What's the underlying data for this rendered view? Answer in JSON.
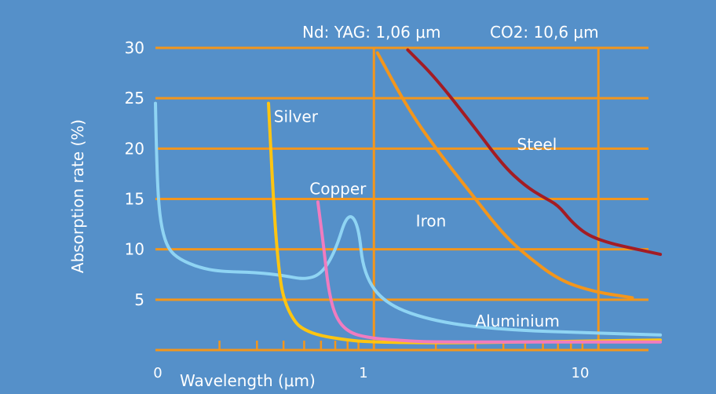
{
  "chart_data": {
    "type": "line",
    "title": "",
    "xlabel": "Wavelength (μm)",
    "ylabel": "Absorption rate (%)",
    "xscale": "log",
    "xlim": [
      0.1,
      20
    ],
    "ylim": [
      0,
      30
    ],
    "grid": true,
    "x_tick_labels": [
      {
        "x": 0.1,
        "label": "0"
      },
      {
        "x": 1,
        "label": "1"
      },
      {
        "x": 10,
        "label": "10"
      }
    ],
    "y_ticks": [
      5,
      10,
      15,
      20,
      25,
      30
    ],
    "minor_x_ticks": [
      0.2,
      0.3,
      0.4,
      0.5,
      0.6,
      0.7,
      0.8,
      0.9,
      2,
      3,
      4,
      5,
      6,
      7,
      8,
      9
    ],
    "reference_lines": [
      {
        "x": 1.06,
        "label": "Nd: YAG: 1,06 μm"
      },
      {
        "x": 10.6,
        "label": "CO2: 10,6 μm"
      }
    ],
    "series": [
      {
        "name": "Aluminium",
        "color": "#8fd4f3",
        "points": [
          [
            0.1,
            24.5
          ],
          [
            0.101,
            20.0
          ],
          [
            0.103,
            15.0
          ],
          [
            0.107,
            12.0
          ],
          [
            0.115,
            10.0
          ],
          [
            0.13,
            9.0
          ],
          [
            0.16,
            8.2
          ],
          [
            0.2,
            7.8
          ],
          [
            0.3,
            7.7
          ],
          [
            0.4,
            7.4
          ],
          [
            0.5,
            7.0
          ],
          [
            0.6,
            7.5
          ],
          [
            0.7,
            9.8
          ],
          [
            0.8,
            13.7
          ],
          [
            0.9,
            12.5
          ],
          [
            0.95,
            7.5
          ],
          [
            1.2,
            4.5
          ],
          [
            2,
            2.8
          ],
          [
            4,
            2.0
          ],
          [
            10,
            1.7
          ],
          [
            20,
            1.5
          ]
        ]
      },
      {
        "name": "Silver",
        "color": "#ffc511",
        "points": [
          [
            0.34,
            24.5
          ],
          [
            0.36,
            14.0
          ],
          [
            0.38,
            8.0
          ],
          [
            0.4,
            5.0
          ],
          [
            0.45,
            2.8
          ],
          [
            0.5,
            2.0
          ],
          [
            0.6,
            1.4
          ],
          [
            0.8,
            1.0
          ],
          [
            1,
            0.8
          ],
          [
            2,
            0.7
          ],
          [
            5,
            0.8
          ],
          [
            10,
            0.9
          ],
          [
            20,
            1.0
          ]
        ]
      },
      {
        "name": "Copper",
        "color": "#f07cbf",
        "points": [
          [
            0.58,
            14.7
          ],
          [
            0.62,
            10.0
          ],
          [
            0.65,
            6.0
          ],
          [
            0.7,
            3.3
          ],
          [
            0.8,
            1.8
          ],
          [
            1,
            1.2
          ],
          [
            1.5,
            0.9
          ],
          [
            2,
            0.8
          ],
          [
            5,
            0.8
          ],
          [
            10,
            0.8
          ],
          [
            20,
            0.8
          ]
        ]
      },
      {
        "name": "Iron",
        "color": "#f3961c",
        "points": [
          [
            1.1,
            29.5
          ],
          [
            1.5,
            24.0
          ],
          [
            2,
            20.0
          ],
          [
            3,
            15.0
          ],
          [
            4,
            11.5
          ],
          [
            5,
            9.5
          ],
          [
            7,
            7.0
          ],
          [
            10,
            5.8
          ],
          [
            15,
            5.2
          ]
        ]
      },
      {
        "name": "Steel",
        "color": "#a31c24",
        "points": [
          [
            1.5,
            29.8
          ],
          [
            2,
            27.0
          ],
          [
            3,
            22.0
          ],
          [
            4,
            18.3
          ],
          [
            5,
            16.3
          ],
          [
            6,
            15.2
          ],
          [
            7,
            14.4
          ],
          [
            8,
            12.8
          ],
          [
            9,
            11.8
          ],
          [
            10,
            11.2
          ],
          [
            12,
            10.6
          ],
          [
            15,
            10.1
          ],
          [
            20,
            9.5
          ]
        ]
      }
    ],
    "annotations": [
      {
        "text": "Silver",
        "x": 0.36,
        "y": 23.2
      },
      {
        "text": "Copper",
        "x": 0.53,
        "y": 16.0
      },
      {
        "text": "Iron",
        "x": 1.63,
        "y": 12.8
      },
      {
        "text": "Steel",
        "x": 4.6,
        "y": 20.4
      },
      {
        "text": "Aluminium",
        "x": 3.0,
        "y": 2.9
      }
    ]
  },
  "colors": {
    "background": "#5590c9",
    "grid": "#f3961c",
    "text": "#ffffff"
  }
}
